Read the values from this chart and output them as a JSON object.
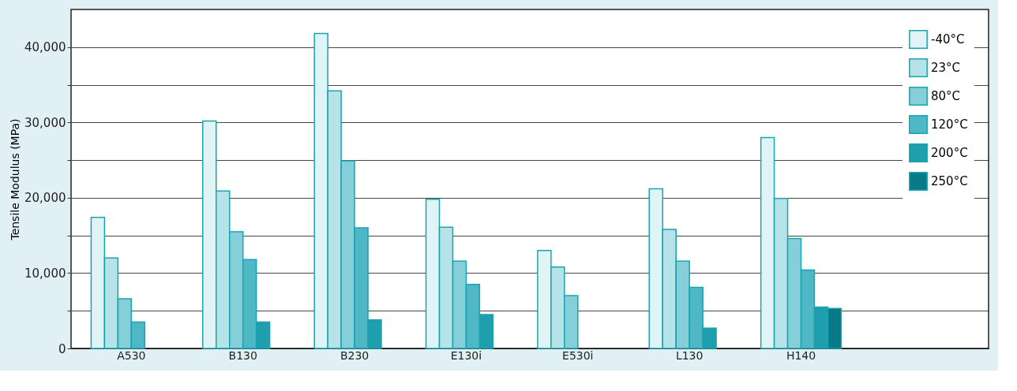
{
  "chart_data": {
    "type": "bar",
    "ylabel": "Tensile Modulus (MPa)",
    "categories": [
      "A530",
      "B130",
      "B230",
      "E130i",
      "E530i",
      "L130",
      "H140"
    ],
    "series": [
      {
        "name": "-40°C",
        "color": "#e0f3f5",
        "values": [
          17400,
          30200,
          41800,
          19800,
          13000,
          21200,
          28000
        ]
      },
      {
        "name": "23°C",
        "color": "#b5e3e8",
        "values": [
          12000,
          20900,
          34200,
          16100,
          10800,
          15800,
          19900
        ]
      },
      {
        "name": "80°C",
        "color": "#85d0d8",
        "values": [
          6600,
          15500,
          24900,
          11600,
          7000,
          11600,
          14600
        ]
      },
      {
        "name": "120°C",
        "color": "#4fb8c4",
        "values": [
          3500,
          11800,
          16000,
          8500,
          null,
          8100,
          10400
        ]
      },
      {
        "name": "200°C",
        "color": "#1f9fae",
        "values": [
          null,
          3500,
          3800,
          4500,
          null,
          2700,
          5500
        ]
      },
      {
        "name": "250°C",
        "color": "#0b7a88",
        "values": [
          null,
          null,
          null,
          null,
          null,
          null,
          5300
        ]
      }
    ],
    "ylim": [
      0,
      45000
    ],
    "yticks": [
      0,
      {
        "value": 5000,
        "label": null
      },
      {
        "value": 10000,
        "label": "10,000"
      },
      {
        "value": 15000,
        "label": null
      },
      {
        "value": 20000,
        "label": "20,000"
      },
      {
        "value": 25000,
        "label": null
      },
      {
        "value": 30000,
        "label": "30,000"
      },
      {
        "value": 35000,
        "label": null
      },
      {
        "value": 40000,
        "label": "40,000"
      }
    ],
    "grid": "y",
    "legend": "top right"
  }
}
